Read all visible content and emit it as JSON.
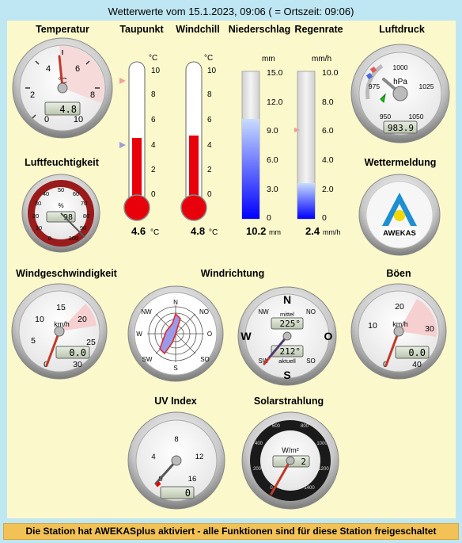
{
  "header": {
    "title": "Wetterwerte vom 15.1.2023, 09:06 ( = Ortszeit: 09:06)"
  },
  "labels": {
    "temperature": "Temperatur",
    "dewpoint": "Taupunkt",
    "windchill": "Windchill",
    "precipitation": "Niederschlag",
    "rainrate": "Regenrate",
    "pressure": "Luftdruck",
    "humidity": "Luftfeuchtigkeit",
    "weather_report": "Wettermeldung",
    "windspeed": "Windgeschwindigkeit",
    "winddirection": "Windrichtung",
    "gusts": "Böen",
    "uv": "UV Index",
    "solar": "Solarstrahlung"
  },
  "temperature": {
    "value": "4.8",
    "unit": "°C",
    "ticks": [
      "0",
      "2",
      "4",
      "6",
      "8",
      "10"
    ],
    "level": 4.8
  },
  "dewpoint": {
    "value": "4.6",
    "unit": "°C",
    "axis_unit": "°C",
    "ticks": [
      "10",
      "8",
      "6",
      "4",
      "2",
      "0"
    ],
    "level": 4.6
  },
  "windchill": {
    "value": "4.8",
    "unit": "°C",
    "axis_unit": "°C",
    "ticks": [
      "10",
      "8",
      "6",
      "4",
      "2",
      "0"
    ],
    "level": 4.8
  },
  "precipitation": {
    "value": "10.2",
    "unit": "mm",
    "axis_unit": "mm",
    "ticks": [
      "15.0",
      "12.0",
      "9.0",
      "6.0",
      "3.0",
      "0"
    ],
    "level": 10.2
  },
  "rainrate": {
    "value": "2.4",
    "unit": "mm/h",
    "axis_unit": "mm/h",
    "ticks": [
      "10.0",
      "8.0",
      "6.0",
      "4.0",
      "2.0",
      "0"
    ],
    "level": 2.4
  },
  "pressure": {
    "value": "983.9",
    "unit": "hPa",
    "ticks": [
      "950",
      "975",
      "1000",
      "1025",
      "1050"
    ],
    "level": 983.9
  },
  "humidity": {
    "value": "98",
    "unit": "%",
    "ticks": [
      "0",
      "10",
      "20",
      "30",
      "40",
      "50",
      "60",
      "70",
      "80",
      "90",
      "100"
    ],
    "level": 98
  },
  "weather_report": {
    "logo_text": "AWEKAS"
  },
  "windspeed": {
    "value": "0.0",
    "unit": "km/h",
    "ticks": [
      "0",
      "5",
      "10",
      "15",
      "20",
      "25",
      "30"
    ],
    "level": 0
  },
  "winddirection": {
    "rose_labels": [
      "N",
      "NO",
      "O",
      "SO",
      "S",
      "SW",
      "W",
      "NW"
    ],
    "compass_labels": [
      "N",
      "NO",
      "O",
      "SO",
      "S",
      "SW",
      "W",
      "NW"
    ],
    "avg_label": "mittel",
    "avg_value": "225°",
    "cur_label": "aktuell",
    "cur_value": "212°"
  },
  "gusts": {
    "value": "0.0",
    "unit": "km/h",
    "ticks": [
      "0",
      "10",
      "20",
      "30",
      "40"
    ],
    "level": 0
  },
  "uv": {
    "value": "0",
    "ticks": [
      "0",
      "4",
      "8",
      "12",
      "16"
    ],
    "level": 0
  },
  "solar": {
    "value": "2",
    "unit": "W/m²",
    "ticks": [
      "0",
      "200",
      "400",
      "600",
      "800",
      "1000",
      "1200",
      "1400"
    ],
    "level": 2
  },
  "footer": {
    "text": "Die Station hat AWEKASplus aktiviert - alle Funktionen sind für diese Station freigeschaltet"
  },
  "colors": {
    "background": "#bfe6f3",
    "panel": "#fbf8cc",
    "footer": "#f2c257",
    "mercury": "#e8000a",
    "needle": "#c0392b"
  }
}
